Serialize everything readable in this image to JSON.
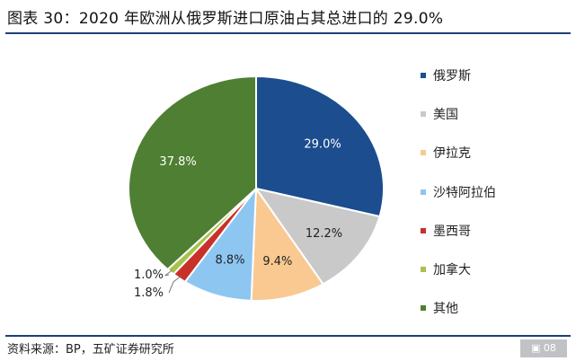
{
  "title": "图表 30：2020 年欧洲从俄罗斯进口原油占其总进口的 29.0%",
  "source": "资料来源：BP，五矿证券研究所",
  "watermark_icon": "logo-badge-icon",
  "chart_data": {
    "type": "pie",
    "title": "图表 30：2020 年欧洲从俄罗斯进口原油占其总进口的 29.0%",
    "legend_position": "right",
    "unit": "%",
    "slices": [
      {
        "name": "俄罗斯",
        "value": 29.0,
        "label": "29.0%",
        "color": "#1b4d8f"
      },
      {
        "name": "美国",
        "value": 12.2,
        "label": "12.2%",
        "color": "#c9c9c9"
      },
      {
        "name": "伊拉克",
        "value": 9.4,
        "label": "9.4%",
        "color": "#f9c991"
      },
      {
        "name": "沙特阿拉伯",
        "value": 8.8,
        "label": "8.8%",
        "color": "#8ec6f2"
      },
      {
        "name": "墨西哥",
        "value": 1.8,
        "label": "1.8%",
        "color": "#c8312a"
      },
      {
        "name": "加拿大",
        "value": 1.0,
        "label": "1.0%",
        "color": "#a7c24a"
      },
      {
        "name": "其他",
        "value": 37.8,
        "label": "37.8%",
        "color": "#4f7f33"
      }
    ]
  }
}
